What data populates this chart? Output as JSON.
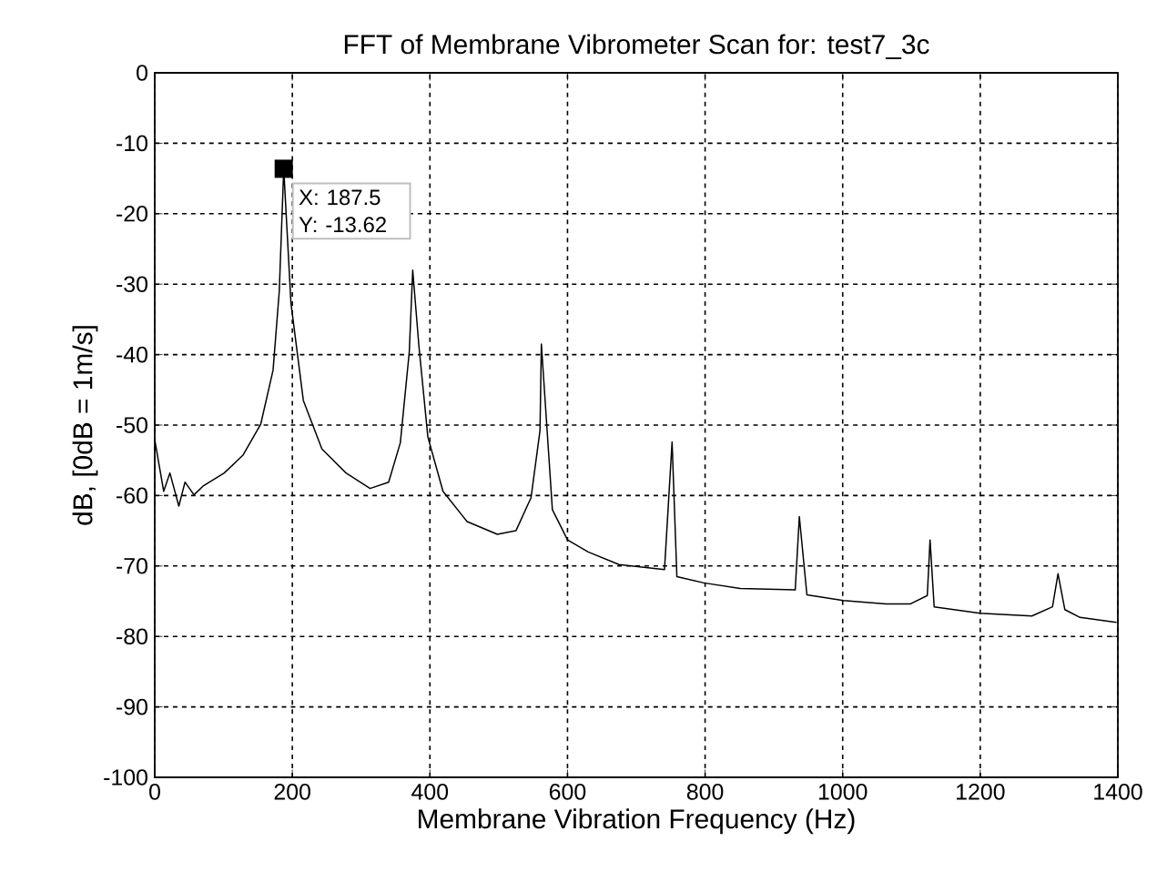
{
  "chart_data": {
    "type": "line",
    "title": "FFT of Membrane Vibrometer Scan for: test7_3c",
    "xlabel": "Membrane Vibration Frequency (Hz)",
    "ylabel": "dB,  [0dB = 1m/s]",
    "xlim": [
      0,
      1400
    ],
    "ylim": [
      -100,
      0
    ],
    "xticks": [
      0,
      200,
      400,
      600,
      800,
      1000,
      1200,
      1400
    ],
    "yticks": [
      -100,
      -90,
      -80,
      -70,
      -60,
      -50,
      -40,
      -30,
      -20,
      -10,
      0
    ],
    "grid": true,
    "marker": "none",
    "line_style": "solid",
    "annotations": [
      {
        "text": "X: 187.5",
        "x": 187.5,
        "y": -13.62
      },
      {
        "text": "Y: -13.62",
        "x": 187.5,
        "y": -13.62
      }
    ],
    "series": [
      {
        "color": "#000000",
        "x": [
          0,
          13,
          22,
          35,
          44,
          57,
          71,
          101,
          128,
          154,
          172,
          181,
          187.5,
          198,
          216,
          243,
          278,
          313,
          340,
          357,
          370,
          375,
          384,
          397,
          419,
          454,
          498,
          525,
          547,
          560,
          562,
          578,
          600,
          630,
          675,
          741,
          752,
          759,
          798,
          851,
          931,
          937,
          948,
          1001,
          1063,
          1098,
          1123,
          1127,
          1133,
          1200,
          1275,
          1305,
          1313,
          1323,
          1345,
          1398
        ],
        "values": [
          -52.1,
          -59.4,
          -56.8,
          -61.5,
          -58.1,
          -59.9,
          -58.6,
          -56.8,
          -54.3,
          -49.9,
          -42.2,
          -31,
          -13.62,
          -32.7,
          -46.5,
          -53.4,
          -56.8,
          -59,
          -58.1,
          -52.5,
          -39.6,
          -28,
          -38.8,
          -51.7,
          -59.4,
          -63.7,
          -65.5,
          -65,
          -60.3,
          -50.8,
          -38.5,
          -62,
          -66.3,
          -68,
          -69.8,
          -70.5,
          -52.4,
          -71.5,
          -72.4,
          -73.2,
          -73.4,
          -63,
          -74.1,
          -74.9,
          -75.4,
          -75.4,
          -74.2,
          -66.3,
          -75.8,
          -76.7,
          -77.1,
          -75.8,
          -71.1,
          -76.2,
          -77.3,
          -78
        ]
      }
    ]
  }
}
